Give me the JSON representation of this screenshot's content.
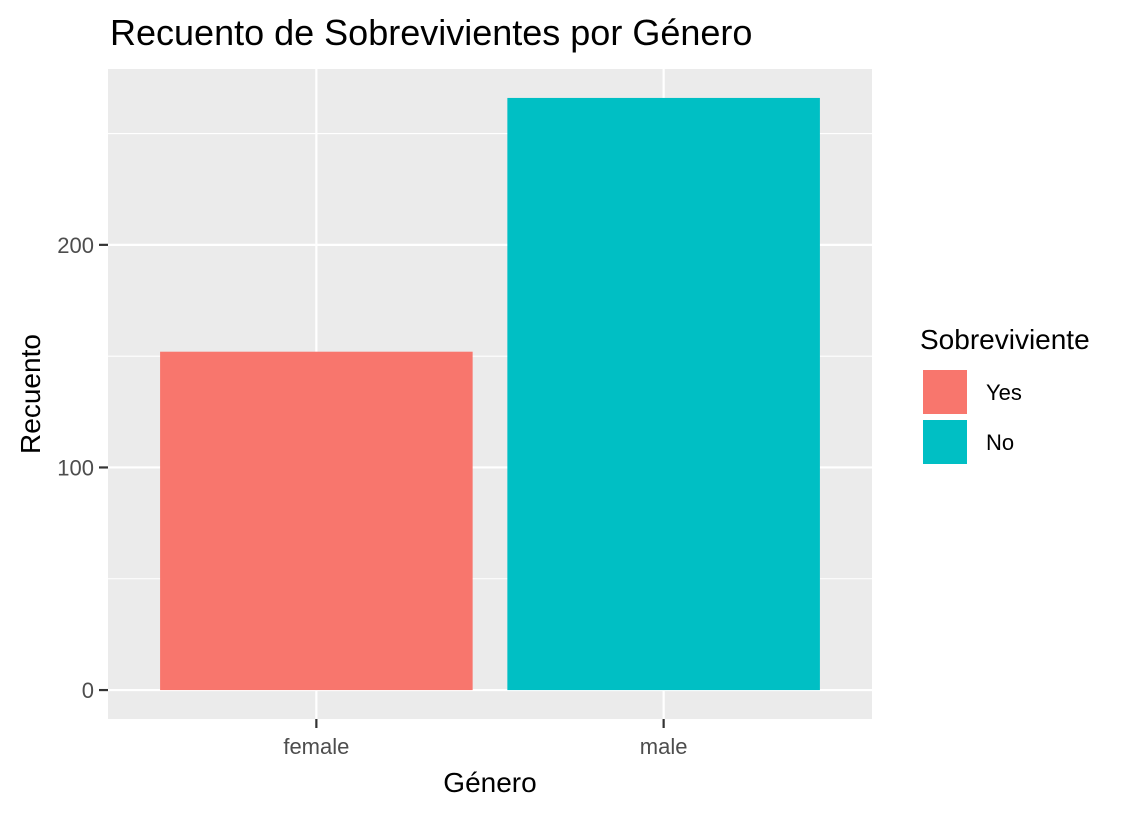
{
  "chart_data": {
    "type": "bar",
    "title": "Recuento de Sobrevivientes por Género",
    "xlabel": "Género",
    "ylabel": "Recuento",
    "categories": [
      "female",
      "male"
    ],
    "values": [
      152,
      266
    ],
    "series": [
      {
        "name": "Yes",
        "values": [
          152,
          null
        ],
        "color": "#F8766D"
      },
      {
        "name": "No",
        "values": [
          null,
          266
        ],
        "color": "#00BFC4"
      }
    ],
    "ylim": [
      -13,
      279
    ],
    "yticks": [
      0,
      100,
      200
    ],
    "ytick_labels": [
      "0",
      "100",
      "200"
    ],
    "grid": true,
    "legend": {
      "title": "Sobreviviente",
      "placement": "right",
      "entries": [
        {
          "label": "Yes",
          "color": "#F8766D"
        },
        {
          "label": "No",
          "color": "#00BFC4"
        }
      ]
    },
    "panel_background": "#EBEBEB",
    "grid_color": "#FFFFFF"
  }
}
